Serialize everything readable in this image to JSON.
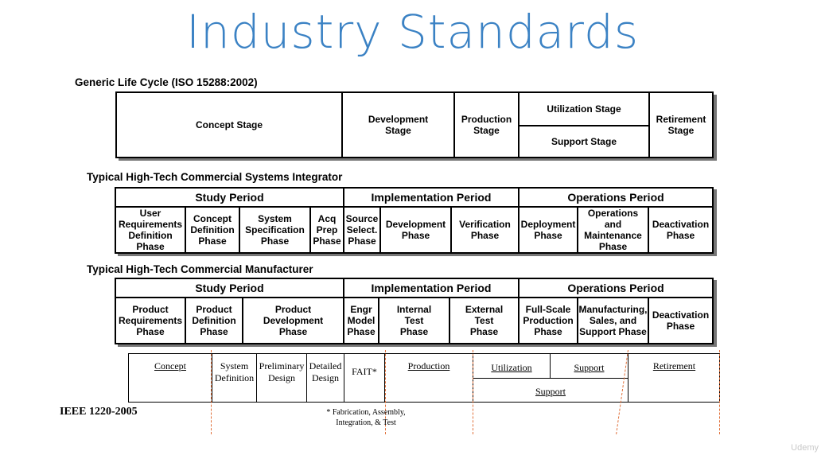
{
  "title": "Industry Standards",
  "iso": {
    "label": "Generic Life Cycle (ISO 15288:2002)",
    "stages": {
      "concept": "Concept Stage",
      "development": "Development\nStage",
      "production": "Production\nStage",
      "utilization": "Utilization Stage",
      "support": "Support Stage",
      "retirement": "Retirement\nStage"
    }
  },
  "integrator": {
    "label": "Typical High-Tech Commercial Systems Integrator",
    "periods": [
      "Study Period",
      "Implementation Period",
      "Operations Period"
    ],
    "phases": [
      "User\nRequirements\nDefinition\nPhase",
      "Concept\nDefinition\nPhase",
      "System\nSpecification\nPhase",
      "Acq\nPrep\nPhase",
      "Source\nSelect.\nPhase",
      "Development\nPhase",
      "Verification\nPhase",
      "Deployment\nPhase",
      "Operations\nand\nMaintenance\nPhase",
      "Deactivation\nPhase"
    ]
  },
  "manufacturer": {
    "label": "Typical High-Tech Commercial Manufacturer",
    "periods": [
      "Study Period",
      "Implementation Period",
      "Operations Period"
    ],
    "phases": [
      "Product\nRequirements\nPhase",
      "Product\nDefinition\nPhase",
      "Product\nDevelopment\nPhase",
      "Engr\nModel\nPhase",
      "Internal\nTest\nPhase",
      "External\nTest\nPhase",
      "Full-Scale\nProduction\nPhase",
      "Manufacturing,\nSales, and\nSupport Phase",
      "Deactivation\nPhase"
    ]
  },
  "ieee": {
    "label": "IEEE 1220-2005",
    "cells": {
      "concept": "Concept",
      "system_definition": "System\nDefinition",
      "preliminary_design": "Preliminary\nDesign",
      "detailed_design": "Detailed\nDesign",
      "fait": "FAIT*",
      "production": "Production",
      "utilization": "Utilization",
      "support_top": "Support",
      "support_bottom": "Support",
      "retirement": "Retirement"
    },
    "footnote": "* Fabrication, Assembly,\nIntegration, & Test"
  },
  "watermark": "Udemy"
}
